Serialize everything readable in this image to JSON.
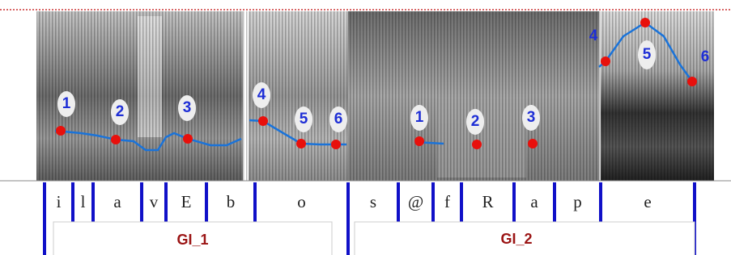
{
  "points": {
    "group_1": [
      "1",
      "2",
      "3",
      "4",
      "5",
      "6"
    ],
    "group_2": [
      "1",
      "2",
      "3",
      "4",
      "5",
      "6"
    ]
  },
  "phonemes": [
    "i",
    "l",
    "a",
    "v",
    "E",
    "b",
    "o",
    "s",
    "@",
    "f",
    "R",
    "a",
    "p",
    "e"
  ],
  "groups": [
    "GI_1",
    "GI_2"
  ]
}
